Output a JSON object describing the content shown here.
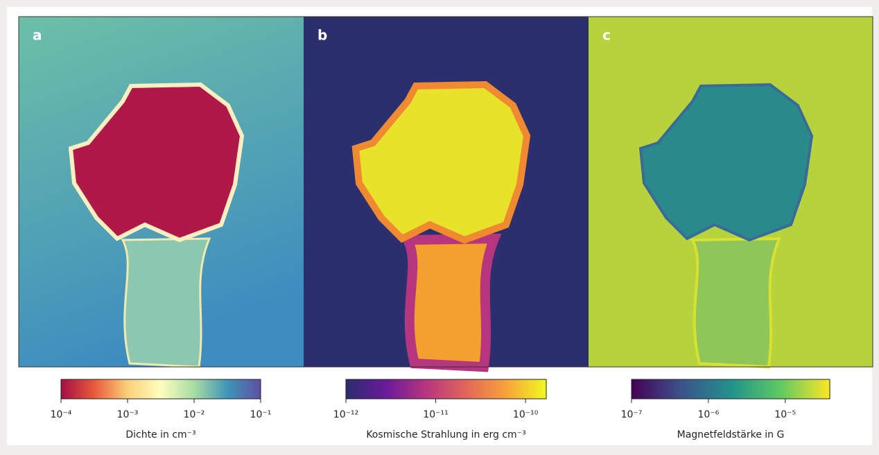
{
  "chart_data": [
    {
      "type": "image",
      "panel_label": "a",
      "colorbar_label": "Dichte in cm⁻³",
      "log": true,
      "xlim": [
        0.0001,
        0.1
      ],
      "xticks": [
        {
          "value": 0.0001,
          "label": "10⁻⁴"
        },
        {
          "value": 0.001,
          "label": "10⁻³"
        },
        {
          "value": 0.01,
          "label": "10⁻²"
        },
        {
          "value": 0.1,
          "label": "10⁻¹"
        }
      ],
      "colormap": [
        "#a50d45",
        "#e85a3a",
        "#fbd07a",
        "#fefebd",
        "#a8dca4",
        "#3f95b8",
        "#5e4fa2"
      ]
    },
    {
      "type": "image",
      "panel_label": "b",
      "colorbar_label": "Kosmische Strahlung in erg cm⁻³",
      "log": true,
      "xlim": [
        1e-12,
        1.7e-10
      ],
      "xticks": [
        {
          "value": 1e-12,
          "label": "10⁻¹²"
        },
        {
          "value": 1e-11,
          "label": "10⁻¹¹"
        },
        {
          "value": 1e-10,
          "label": "10⁻¹⁰"
        }
      ],
      "colormap": [
        "#2a2d6e",
        "#6a1a9a",
        "#b5367f",
        "#e2665a",
        "#f8a33a",
        "#f0f921"
      ]
    },
    {
      "type": "image",
      "panel_label": "c",
      "colorbar_label": "Magnetfeldstärke in G",
      "log": true,
      "xlim": [
        1e-07,
        3.8e-05
      ],
      "xticks": [
        {
          "value": 1e-07,
          "label": "10⁻⁷"
        },
        {
          "value": 1e-06,
          "label": "10⁻⁶"
        },
        {
          "value": 1e-05,
          "label": "10⁻⁵"
        }
      ],
      "colormap": [
        "#440154",
        "#3b528b",
        "#21918c",
        "#5ec962",
        "#fde725"
      ]
    }
  ]
}
